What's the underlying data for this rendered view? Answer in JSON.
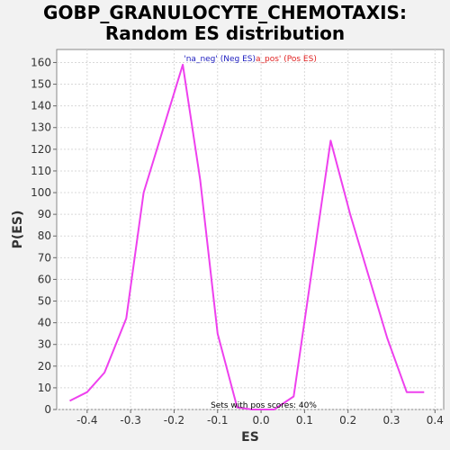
{
  "chart_data": {
    "type": "line",
    "title_line1": "GOBP_GRANULOCYTE_CHEMOTAXIS:",
    "title_line2": "Random ES distribution",
    "xlabel": "ES",
    "ylabel": "P(ES)",
    "xlim": [
      -0.47,
      0.42
    ],
    "ylim": [
      0,
      166
    ],
    "xticks": [
      -0.4,
      -0.3,
      -0.2,
      -0.1,
      0.0,
      0.1,
      0.2,
      0.3,
      0.4
    ],
    "xtick_labels": [
      "-0.4",
      "-0.3",
      "-0.2",
      "-0.1",
      "0.0",
      "0.1",
      "0.2",
      "0.3",
      "0.4"
    ],
    "yticks": [
      0,
      10,
      20,
      30,
      40,
      50,
      60,
      70,
      80,
      90,
      100,
      110,
      120,
      130,
      140,
      150,
      160
    ],
    "grid": true,
    "legend": {
      "placement": "top-center",
      "neg_label": "'na_neg' (Neg ES)",
      "pos_label": "a_pos' (Pos ES)",
      "neg_color": "#2020c0",
      "pos_color": "#e02020"
    },
    "annotation": "Sets with pos scores: 40%",
    "series": [
      {
        "color": "#ee40ee",
        "x": [
          -0.44,
          -0.4,
          -0.36,
          -0.31,
          -0.27,
          -0.18,
          -0.14,
          -0.1,
          -0.055,
          -0.02,
          0.03,
          0.075,
          0.16,
          0.205,
          0.29,
          0.335,
          0.375
        ],
        "y": [
          4,
          8,
          17,
          42,
          100,
          159,
          106,
          35,
          1,
          0,
          0,
          6,
          124,
          90,
          33,
          8,
          8
        ]
      }
    ]
  }
}
